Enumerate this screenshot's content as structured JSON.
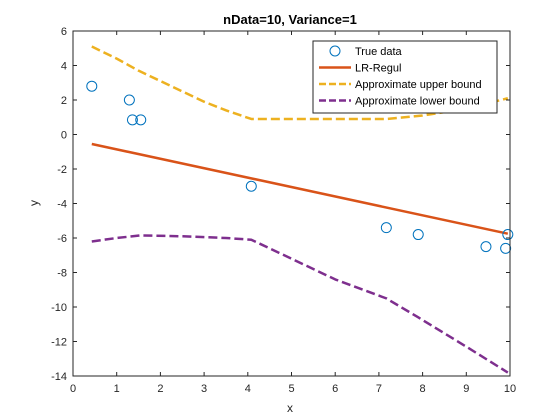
{
  "chart_data": {
    "type": "line",
    "title": "nData=10, Variance=1",
    "xlabel": "x",
    "ylabel": "y",
    "xlim": [
      0,
      10
    ],
    "ylim": [
      -14,
      6
    ],
    "xticks": [
      0,
      1,
      2,
      3,
      4,
      5,
      6,
      7,
      8,
      9,
      10
    ],
    "yticks": [
      -14,
      -12,
      -10,
      -8,
      -6,
      -4,
      -2,
      0,
      2,
      4,
      6
    ],
    "grid": false,
    "legend_position": "top-right",
    "series": [
      {
        "name": "True data",
        "kind": "scatter",
        "marker": "open-circle",
        "color": "#0072BD",
        "x": [
          0.43,
          1.29,
          1.36,
          1.55,
          4.08,
          7.17,
          7.9,
          9.45,
          9.9,
          9.95
        ],
        "y": [
          2.8,
          2.0,
          0.85,
          0.85,
          -3.0,
          -5.4,
          -5.8,
          -6.5,
          -6.6,
          -5.8
        ]
      },
      {
        "name": "LR-Regul",
        "kind": "line",
        "dash": "solid",
        "color": "#D95319",
        "x": [
          0.43,
          9.95
        ],
        "y": [
          -0.55,
          -5.75
        ]
      },
      {
        "name": "Approximate upper bound",
        "kind": "line",
        "dash": "dashed",
        "color": "#EDB120",
        "x": [
          0.43,
          1.0,
          1.5,
          2.0,
          2.5,
          3.0,
          3.5,
          4.08,
          5.0,
          6.0,
          7.17,
          8.0,
          9.0,
          9.95
        ],
        "y": [
          5.1,
          4.4,
          3.7,
          3.1,
          2.5,
          1.9,
          1.4,
          0.9,
          0.9,
          0.9,
          0.9,
          1.1,
          1.5,
          2.1
        ]
      },
      {
        "name": "Approximate lower bound",
        "kind": "line",
        "dash": "dashed",
        "color": "#7E2F8E",
        "x": [
          0.43,
          1.0,
          1.55,
          2.5,
          3.5,
          4.08,
          5.0,
          6.0,
          7.17,
          7.9,
          9.0,
          9.95
        ],
        "y": [
          -6.2,
          -6.0,
          -5.85,
          -5.9,
          -6.0,
          -6.1,
          -7.2,
          -8.4,
          -9.5,
          -10.6,
          -12.3,
          -13.8
        ]
      }
    ]
  }
}
